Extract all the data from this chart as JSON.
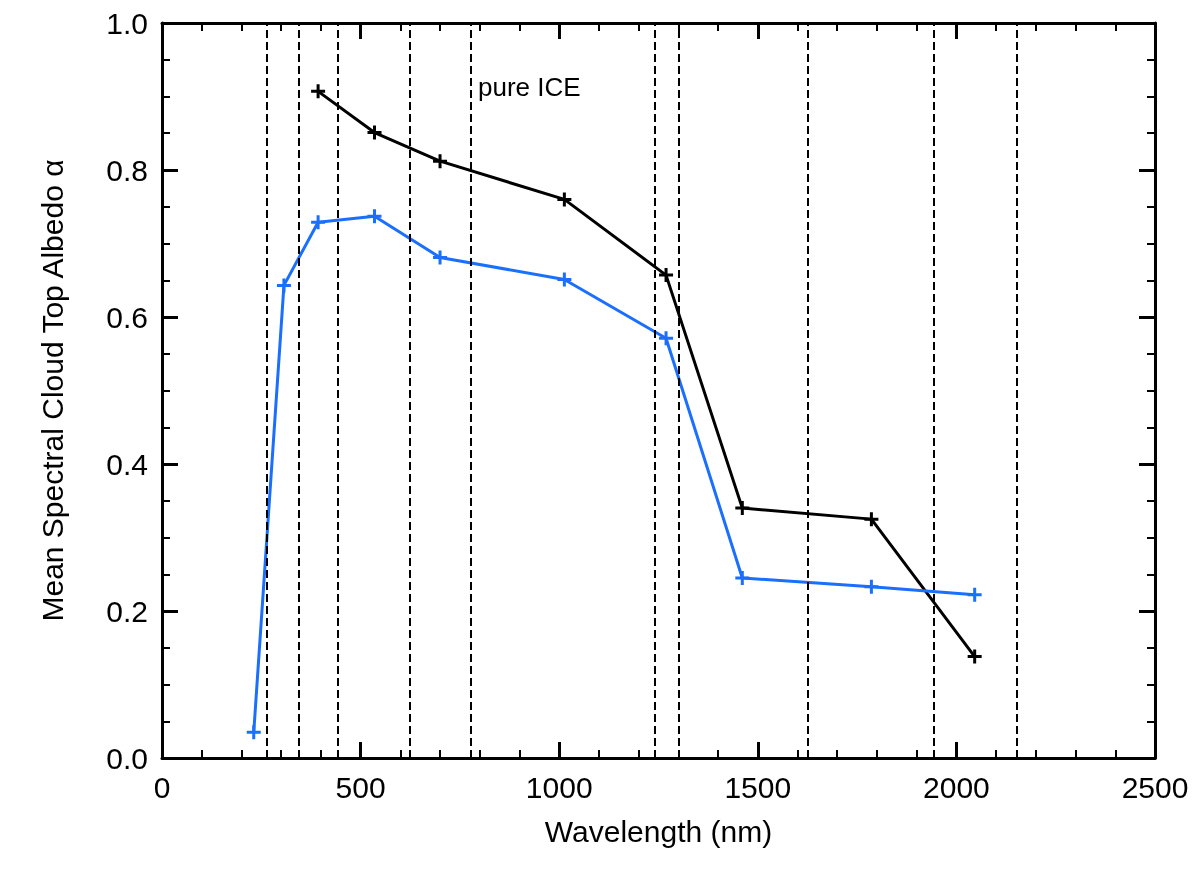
{
  "chart_data": {
    "type": "line",
    "xlabel": "Wavelength (nm)",
    "ylabel": "Mean Spectral Cloud Top Albedo α",
    "annotations": [
      "pure ICE"
    ],
    "series": [
      {
        "color": "#000000",
        "x": [
          393,
          535,
          700,
          1013,
          1269,
          1461,
          1786,
          2046
        ],
        "values": [
          0.907,
          0.851,
          0.812,
          0.76,
          0.657,
          0.34,
          0.325,
          0.138
        ]
      },
      {
        "color": "#1a6fff",
        "x": [
          231,
          307,
          393,
          535,
          700,
          1013,
          1269,
          1461,
          1786,
          2046
        ],
        "values": [
          0.035,
          0.643,
          0.729,
          0.737,
          0.681,
          0.651,
          0.571,
          0.245,
          0.233,
          0.222
        ]
      }
    ],
    "xlim": [
      0,
      2500
    ],
    "xticks": [
      0,
      500,
      1000,
      1500,
      2000,
      2500
    ],
    "ylim": [
      0,
      1
    ],
    "yticks": [
      "0.0",
      0.2,
      0.4,
      0.6,
      0.8,
      "1.0"
    ],
    "ref_lines": [
      {
        "axis": "x",
        "value": 264,
        "color": "#000000",
        "line_style": "dashed"
      },
      {
        "axis": "x",
        "value": 345,
        "color": "#000000",
        "line_style": "dashed"
      },
      {
        "axis": "x",
        "value": 442,
        "color": "#000000",
        "line_style": "dashed"
      },
      {
        "axis": "x",
        "value": 624,
        "color": "#000000",
        "line_style": "dashed"
      },
      {
        "axis": "x",
        "value": 777,
        "color": "#000000",
        "line_style": "dashed"
      },
      {
        "axis": "x",
        "value": 1241,
        "color": "#000000",
        "line_style": "dashed"
      },
      {
        "axis": "x",
        "value": 1300,
        "color": "#000000",
        "line_style": "dashed"
      },
      {
        "axis": "x",
        "value": 1626,
        "color": "#000000",
        "line_style": "dashed"
      },
      {
        "axis": "x",
        "value": 1942,
        "color": "#000000",
        "line_style": "dashed"
      },
      {
        "axis": "x",
        "value": 2152,
        "color": "#000000",
        "line_style": "dashed"
      }
    ],
    "marker": "cross",
    "line_style": "solid",
    "grid": false
  }
}
